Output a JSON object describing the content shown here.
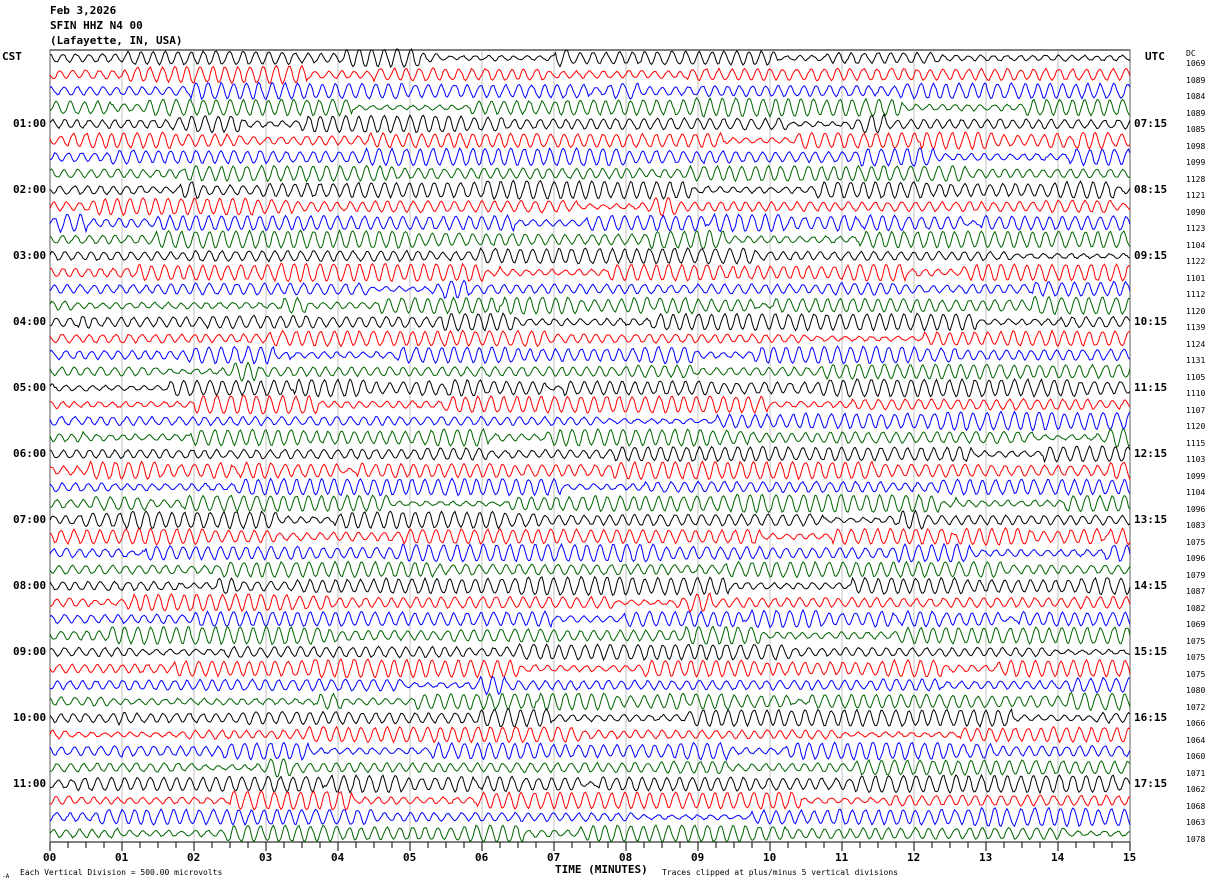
{
  "header": {
    "date": "Feb 3,2026",
    "station": "SFIN HHZ N4 00",
    "location": "(Lafayette, IN, USA)"
  },
  "chart_data": {
    "type": "line",
    "subtype": "helicorder",
    "left_axis_label": "CST",
    "right_axis_label": "UTC",
    "dc_label": "DC",
    "left_hour_labels": [
      "01:00",
      "02:00",
      "03:00",
      "04:00",
      "05:00",
      "06:00",
      "07:00",
      "08:00",
      "09:00",
      "10:00",
      "11:00"
    ],
    "right_hour_labels": [
      "07:15",
      "08:15",
      "09:15",
      "10:15",
      "11:15",
      "12:15",
      "13:15",
      "14:15",
      "15:15",
      "16:15",
      "17:15"
    ],
    "dc_offsets": [
      "1069",
      "1089",
      "1084",
      "1089",
      "1085",
      "1098",
      "1099",
      "1128",
      "1121",
      "1090",
      "1123",
      "1104",
      "1122",
      "1101",
      "1112",
      "1120",
      "1139",
      "1124",
      "1131",
      "1105",
      "1110",
      "1107",
      "1120",
      "1115",
      "1103",
      "1099",
      "1104",
      "1096",
      "1083",
      "1075",
      "1096",
      "1079",
      "1087",
      "1082",
      "1069",
      "1075",
      "1075",
      "1075",
      "1080",
      "1072",
      "1066",
      "1064",
      "1060",
      "1071",
      "1062",
      "1068",
      "1063",
      "1078"
    ],
    "x_ticks": [
      "00",
      "01",
      "02",
      "03",
      "04",
      "05",
      "06",
      "07",
      "08",
      "09",
      "10",
      "11",
      "12",
      "13",
      "14",
      "15"
    ],
    "xlabel": "TIME (MINUTES)",
    "xlim": [
      0,
      15
    ],
    "trace_colors": [
      "#000000",
      "#ff0000",
      "#0000ff",
      "#006400"
    ],
    "traces_per_hour": 4,
    "grid": true
  },
  "footer": {
    "scale_note": "Each Vertical Division =  500.00 microvolts",
    "clip_note": "Traces clipped at plus/minus 5 vertical divisions",
    "corner_mark": "-A"
  }
}
